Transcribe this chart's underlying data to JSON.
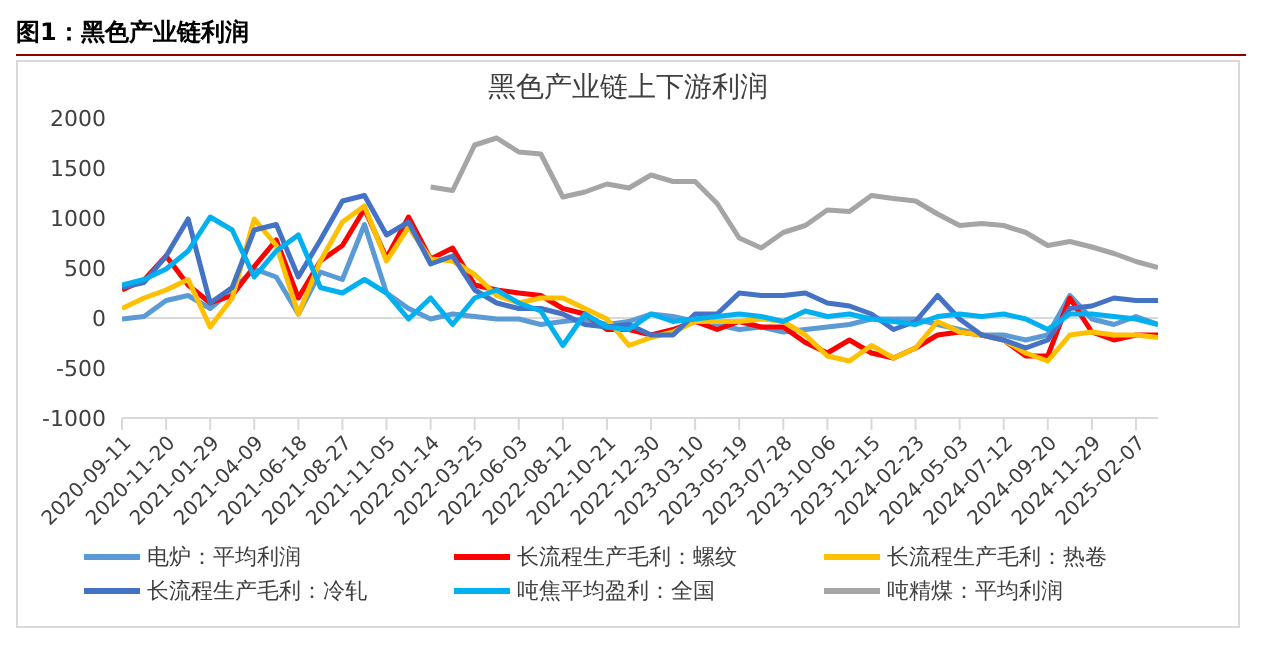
{
  "chart_data": {
    "type": "line",
    "title": "图1：黑色产业链利润",
    "subtitle": "黑色产业链上下游利润",
    "x": [
      "2020-09-11",
      "2020-10-16",
      "2020-11-20",
      "2020-12-25",
      "2021-01-29",
      "2021-03-05",
      "2021-04-09",
      "2021-05-14",
      "2021-06-18",
      "2021-07-23",
      "2021-08-27",
      "2021-10-01",
      "2021-11-05",
      "2021-12-10",
      "2022-01-14",
      "2022-02-18",
      "2022-03-25",
      "2022-04-29",
      "2022-06-03",
      "2022-07-08",
      "2022-08-12",
      "2022-09-16",
      "2022-10-21",
      "2022-11-25",
      "2022-12-30",
      "2023-02-03",
      "2023-03-10",
      "2023-04-14",
      "2023-05-19",
      "2023-06-23",
      "2023-07-28",
      "2023-09-01",
      "2023-10-06",
      "2023-11-10",
      "2023-12-15",
      "2024-01-19",
      "2024-02-23",
      "2024-03-29",
      "2024-05-03",
      "2024-06-07",
      "2024-07-12",
      "2024-08-16",
      "2024-09-20",
      "2024-10-25",
      "2024-11-29",
      "2025-01-03",
      "2025-02-07",
      "2025-03-14"
    ],
    "xlim": [
      "2020-09-11",
      "2025-03-14"
    ],
    "xticks": [
      "2020-09-11",
      "2020-11-20",
      "2021-01-29",
      "2021-04-09",
      "2021-06-18",
      "2021-08-27",
      "2021-11-05",
      "2022-01-14",
      "2022-03-25",
      "2022-06-03",
      "2022-08-12",
      "2022-10-21",
      "2022-12-30",
      "2023-03-10",
      "2023-05-19",
      "2023-07-28",
      "2023-10-06",
      "2023-12-15",
      "2024-02-23",
      "2024-05-03",
      "2024-07-12",
      "2024-09-20",
      "2024-11-29",
      "2025-02-07"
    ],
    "ylim": [
      -1000,
      2000
    ],
    "yticks": [
      -1000,
      -500,
      0,
      500,
      1000,
      1500,
      2000
    ],
    "ref_lines": [
      {
        "axis": "y",
        "value": 0,
        "color": "#d9d9d9"
      }
    ],
    "legend": "bottom",
    "series": [
      {
        "name": "电炉：平均利润",
        "color": "#5b9bd5",
        "values": [
          -10,
          15,
          175,
          225,
          95,
          280,
          490,
          410,
          40,
          460,
          385,
          935,
          250,
          95,
          -10,
          40,
          15,
          -10,
          -10,
          -65,
          -35,
          -10,
          -65,
          -35,
          40,
          15,
          -35,
          -65,
          -115,
          -90,
          -140,
          -115,
          -90,
          -65,
          -10,
          -10,
          -10,
          -65,
          -115,
          -170,
          -170,
          -220,
          -170,
          225,
          -10,
          -65,
          15,
          -65
        ]
      },
      {
        "name": "长流程生产毛利：螺纹",
        "color": "#ff0000",
        "values": [
          280,
          380,
          620,
          330,
          150,
          225,
          515,
          780,
          200,
          570,
          725,
          1090,
          600,
          1010,
          590,
          700,
          330,
          280,
          250,
          225,
          95,
          40,
          -115,
          -115,
          -170,
          -115,
          -35,
          -115,
          -35,
          -90,
          -90,
          -245,
          -350,
          -220,
          -350,
          -400,
          -300,
          -170,
          -140,
          -170,
          -220,
          -380,
          -380,
          200,
          -140,
          -220,
          -170,
          -170
        ]
      },
      {
        "name": "长流程生产毛利：热卷",
        "color": "#ffc000",
        "values": [
          95,
          200,
          280,
          385,
          -90,
          200,
          990,
          725,
          40,
          570,
          960,
          1120,
          570,
          910,
          590,
          570,
          435,
          225,
          150,
          200,
          200,
          95,
          -10,
          -275,
          -195,
          -140,
          -35,
          -35,
          -35,
          -10,
          -35,
          -170,
          -380,
          -430,
          -275,
          -400,
          -300,
          -35,
          -140,
          -170,
          -220,
          -350,
          -430,
          -170,
          -140,
          -170,
          -170,
          -195
        ]
      },
      {
        "name": "长流程生产毛利：冷轧",
        "color": "#4472c4",
        "values": [
          305,
          355,
          620,
          990,
          150,
          305,
          880,
          935,
          410,
          780,
          1170,
          1225,
          830,
          960,
          540,
          620,
          280,
          150,
          95,
          95,
          40,
          -65,
          -90,
          -65,
          -170,
          -170,
          40,
          40,
          250,
          225,
          225,
          250,
          150,
          120,
          40,
          -115,
          -35,
          225,
          -10,
          -170,
          -220,
          -300,
          -220,
          95,
          120,
          200,
          175,
          175
        ]
      },
      {
        "name": "吨焦平均盈利：全国",
        "color": "#00b0f0",
        "values": [
          330,
          385,
          490,
          670,
          1010,
          880,
          410,
          670,
          830,
          305,
          250,
          385,
          250,
          -10,
          200,
          -65,
          200,
          280,
          150,
          70,
          -275,
          40,
          -90,
          -115,
          40,
          -35,
          -10,
          15,
          40,
          15,
          -35,
          70,
          15,
          40,
          -10,
          -35,
          -65,
          15,
          40,
          15,
          40,
          -10,
          -115,
          40,
          40,
          15,
          -10,
          -65
        ]
      },
      {
        "name": "吨精煤：平均利润",
        "color": "#a5a5a5",
        "values": [
          null,
          null,
          null,
          null,
          null,
          null,
          null,
          null,
          null,
          null,
          null,
          null,
          null,
          null,
          1310,
          1275,
          1730,
          1800,
          1660,
          1640,
          1210,
          1260,
          1340,
          1300,
          1430,
          1365,
          1365,
          1145,
          800,
          700,
          855,
          925,
          1080,
          1065,
          1225,
          1195,
          1170,
          1040,
          925,
          945,
          925,
          855,
          725,
          765,
          710,
          645,
          565,
          505
        ]
      }
    ]
  }
}
